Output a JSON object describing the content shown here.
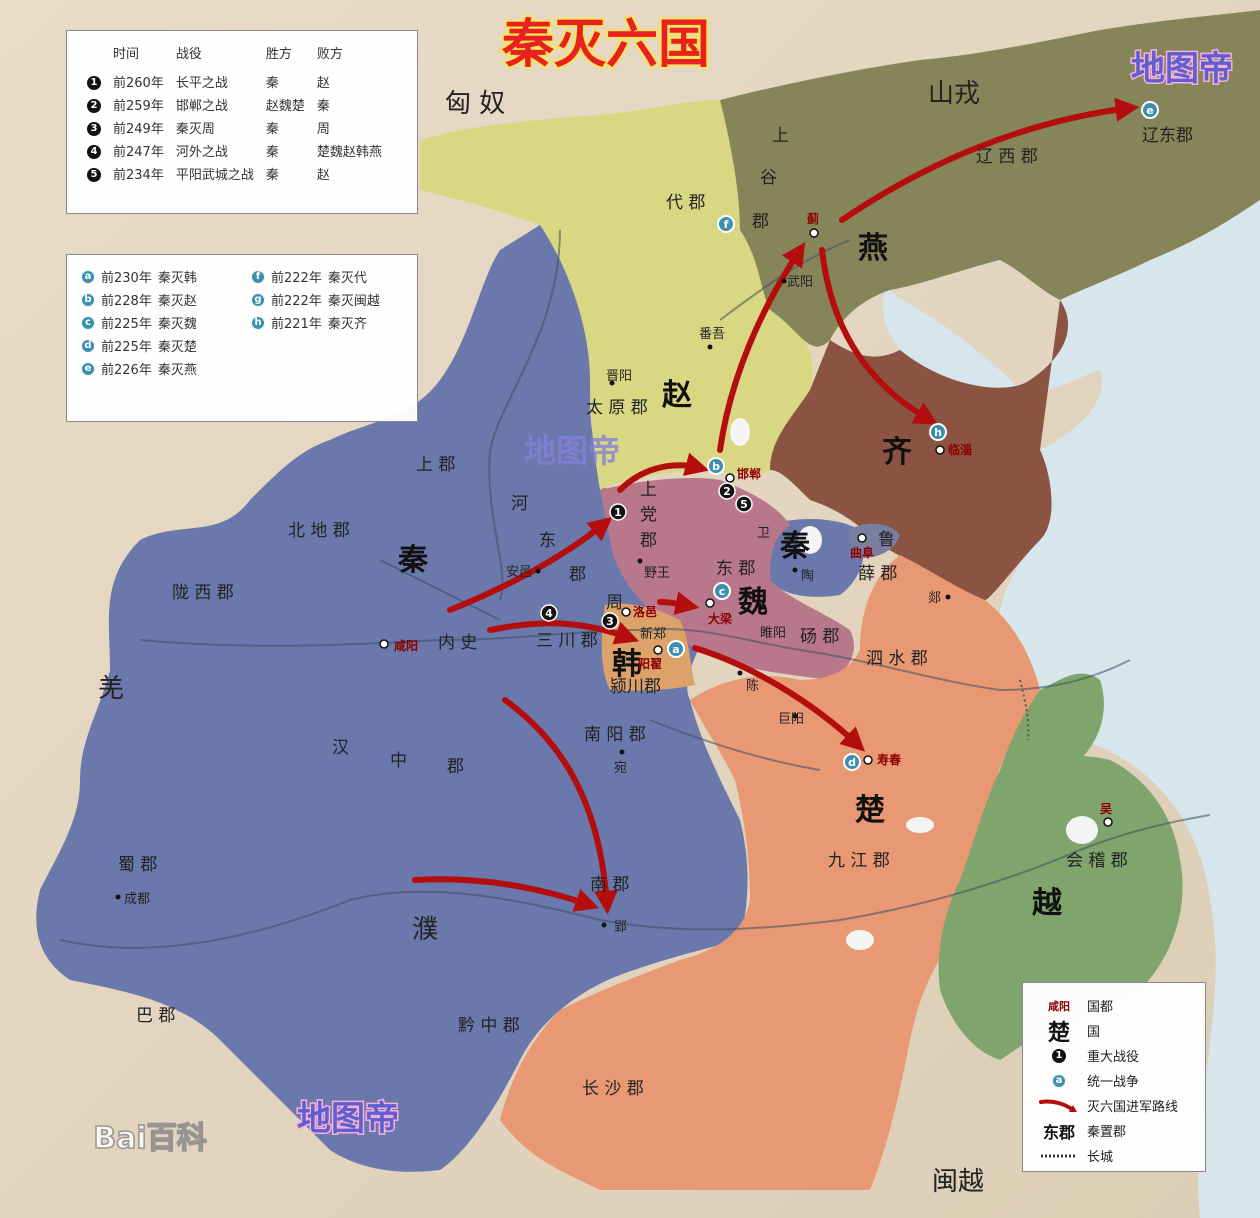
{
  "title": "秦灭六国",
  "watermarks": [
    "地图帝",
    "地图帝",
    "地图帝"
  ],
  "baidu_logo": "Bai百科",
  "battles": {
    "headers": [
      "时间",
      "战役",
      "胜方",
      "败方"
    ],
    "rows": [
      {
        "n": "1",
        "time": "前260年",
        "battle": "长平之战",
        "winner": "秦",
        "loser": "赵"
      },
      {
        "n": "2",
        "time": "前259年",
        "battle": "邯郸之战",
        "winner": "赵魏楚",
        "loser": "秦"
      },
      {
        "n": "3",
        "time": "前249年",
        "battle": "秦灭周",
        "winner": "秦",
        "loser": "周"
      },
      {
        "n": "4",
        "time": "前247年",
        "battle": "河外之战",
        "winner": "秦",
        "loser": "楚魏赵韩燕"
      },
      {
        "n": "5",
        "time": "前234年",
        "battle": "平阳武城之战",
        "winner": "秦",
        "loser": "赵"
      }
    ]
  },
  "unification": [
    {
      "letter": "a",
      "time": "前230年",
      "event": "秦灭韩"
    },
    {
      "letter": "b",
      "time": "前228年",
      "event": "秦灭赵"
    },
    {
      "letter": "c",
      "time": "前225年",
      "event": "秦灭魏"
    },
    {
      "letter": "d",
      "time": "前225年",
      "event": "秦灭楚"
    },
    {
      "letter": "e",
      "time": "前226年",
      "event": "秦灭燕"
    },
    {
      "letter": "f",
      "time": "前222年",
      "event": "秦灭代"
    },
    {
      "letter": "g",
      "time": "前222年",
      "event": "秦灭闽越"
    },
    {
      "letter": "h",
      "time": "前221年",
      "event": "秦灭齐"
    }
  ],
  "legend": {
    "capital_sample": "咸阳",
    "capital": "国都",
    "state_sample": "楚",
    "state": "国",
    "battle": "重大战役",
    "unify": "统一战争",
    "route": "灭六国进军路线",
    "commandery_sample": "东郡",
    "commandery": "秦置郡",
    "wall": "长城"
  },
  "states": {
    "qin": "秦",
    "zhao": "赵",
    "yan": "燕",
    "qi": "齐",
    "chu": "楚",
    "wei": "魏",
    "han": "韩",
    "yue": "越",
    "zhou": "周",
    "wei2": "卫",
    "lu": "鲁",
    "qin2": "秦",
    "xiongnu": "匈 奴",
    "shanrong": "山戎",
    "qiang": "羌",
    "pu": "濮",
    "minyue": "闽越"
  },
  "commanderies": {
    "liaodong": "辽东郡",
    "liaoxi": "辽 西 郡",
    "shanggu_1": "上",
    "shanggu_2": "谷",
    "shanggu_3": "郡",
    "dai": "代 郡",
    "taiyuan": "太 原 郡",
    "shangjun": "上 郡",
    "beidi": "北 地 郡",
    "longxi": "陇 西 郡",
    "neishi": "内 史",
    "hedong_1": "河",
    "hedong_2": "东",
    "hedong_3": "郡",
    "shangdang_1": "上",
    "shangdang_2": "党",
    "shangdang_3": "郡",
    "sanchuan": "三 川 郡",
    "dongjun": "东 郡",
    "dang": "砀 郡",
    "xue": "薛 郡",
    "sishui": "泗 水 郡",
    "yingchuan": "颍川郡",
    "nanyang": "南 阳 郡",
    "hanzhong_1": "汉",
    "hanzhong_2": "中",
    "hanzhong_3": "郡",
    "shu": "蜀 郡",
    "ba": "巴 郡",
    "qianzhong": "黔 中 郡",
    "nan": "南 郡",
    "changsha": "长 沙 郡",
    "jiujiang": "九 江 郡",
    "kuaiji": "会 稽 郡"
  },
  "cities": {
    "ji": "蓟",
    "wuyang": "武阳",
    "fanwu": "番吾",
    "jinyang": "晋阳",
    "handan": "邯郸",
    "linzi": "临淄",
    "anyi": "安邑",
    "yewang": "野王",
    "luoyi": "洛邑",
    "xinzheng": "新郑",
    "yangdi": "阳翟",
    "daliang": "大梁",
    "tao": "陶",
    "qufu": "曲阜",
    "tan": "郯",
    "suiyang": "睢阳",
    "chen": "陈",
    "juyang": "巨阳",
    "shouchun": "寿春",
    "wan": "宛",
    "ying": "郢",
    "chengdu": "成都",
    "wu": "吴",
    "xianyang": "咸阳"
  },
  "markers": {
    "b": "b",
    "c": "c",
    "a": "a",
    "d": "d",
    "e": "e",
    "f": "f",
    "h": "h",
    "one": "1",
    "two": "2",
    "three": "3",
    "four": "4",
    "five": "5"
  },
  "colors": {
    "qin": "#6b78ab",
    "zhao": "#d9d782",
    "yan": "#868559",
    "qi": "#8b5442",
    "chu": "#e89872",
    "wei": "#b9778b",
    "han": "#dca26a",
    "yue": "#7fa56c",
    "route": "#b30d0d",
    "title": "#e82020"
  }
}
